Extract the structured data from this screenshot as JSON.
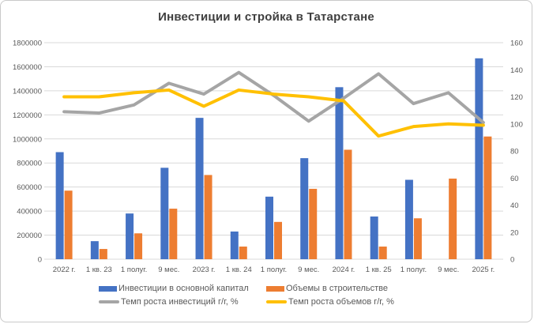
{
  "title": "Инвестиции и стройка в Татарстане",
  "chart_data": {
    "type": "bar",
    "note": "combined bar + line chart, lines on secondary axis",
    "categories": [
      "2022 г.",
      "1 кв. 23",
      "1 полуг.",
      "9 мес.",
      "2023 г.",
      "1 кв. 24",
      "1 полуг.",
      "9 мес.",
      "2024 г.",
      "1 кв. 25",
      "1 полуг.",
      "9 мес.",
      "2025 г."
    ],
    "series": [
      {
        "name": "Инвестиции в основной капитал",
        "slug": "investments",
        "kind": "bar",
        "axis": "left",
        "color": "#4472C4",
        "values": [
          890000,
          150000,
          380000,
          760000,
          1175000,
          230000,
          520000,
          840000,
          1430000,
          355000,
          660000,
          null,
          1670000
        ]
      },
      {
        "name": "Объемы в строительстве",
        "slug": "construction",
        "kind": "bar",
        "axis": "left",
        "color": "#ED7D31",
        "values": [
          570000,
          85000,
          215000,
          420000,
          700000,
          105000,
          310000,
          585000,
          910000,
          105000,
          340000,
          670000,
          1020000
        ]
      },
      {
        "name": "Темп роста инвестиций г/г, %",
        "slug": "investments-growth",
        "kind": "line",
        "axis": "right",
        "color": "#A5A5A5",
        "values": [
          109,
          108,
          114,
          130,
          122,
          138,
          121,
          102,
          119,
          137,
          115,
          123,
          101
        ]
      },
      {
        "name": "Темп роста объемов г/г, %",
        "slug": "volumes-growth",
        "kind": "line",
        "axis": "right",
        "color": "#FFC000",
        "values": [
          120,
          120,
          123,
          125,
          113,
          125,
          122,
          120,
          117,
          91,
          98,
          100,
          99
        ]
      }
    ],
    "left_axis": {
      "min": 0,
      "max": 1800000,
      "tick_labels": [
        "1800000",
        "1600000",
        "1400000",
        "1200000",
        "1000000",
        "800000",
        "600000",
        "400000",
        "200000",
        "0"
      ]
    },
    "right_axis": {
      "min": 0,
      "max": 160,
      "tick_labels": [
        "160",
        "140",
        "120",
        "100",
        "80",
        "60",
        "40",
        "20",
        "0"
      ]
    },
    "grid": true,
    "gridline_color": "#D9D9D9",
    "legend_position": "bottom"
  }
}
